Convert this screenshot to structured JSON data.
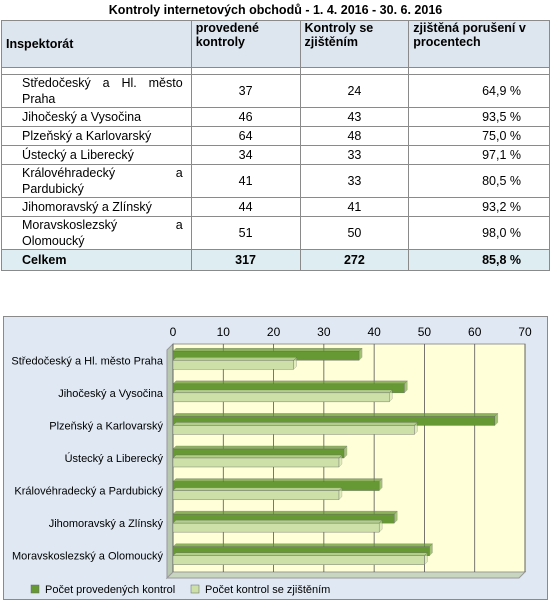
{
  "table": {
    "caption": "Kontroly internetových obchodů  - 1. 4. 2016 - 30. 6. 2016",
    "headers": [
      "Inspektorát",
      "provedené kontroly",
      "Kontroly se zjištěním",
      "zjištěná porušení v procentech"
    ],
    "rows": [
      {
        "name": "Středočeský a Hl. město Praha",
        "provedene": "37",
        "zjisteni": "24",
        "pct": "64,9 %"
      },
      {
        "name": "Jihočeský a Vysočina",
        "provedene": "46",
        "zjisteni": "43",
        "pct": "93,5 %"
      },
      {
        "name": "Plzeňský a Karlovarský",
        "provedene": "64",
        "zjisteni": "48",
        "pct": "75,0 %"
      },
      {
        "name": "Ústecký a Liberecký",
        "provedene": "34",
        "zjisteni": "33",
        "pct": "97,1 %"
      },
      {
        "name": "Královéhradecký a Pardubický",
        "provedene": "41",
        "zjisteni": "33",
        "pct": "80,5 %"
      },
      {
        "name": "Jihomoravský a Zlínský",
        "provedene": "44",
        "zjisteni": "41",
        "pct": "93,2 %"
      },
      {
        "name": "Moravskoslezský a Olomoucký",
        "provedene": "51",
        "zjisteni": "50",
        "pct": "98,0 %"
      }
    ],
    "total": {
      "name": "Celkem",
      "provedene": "317",
      "zjisteni": "272",
      "pct": "85,8 %"
    }
  },
  "chart_data": {
    "type": "bar",
    "orientation": "horizontal",
    "categories": [
      "Středočeský a Hl. město Praha",
      "Jihočeský a Vysočina",
      "Plzeňský a Karlovarský",
      "Ústecký a Liberecký",
      "Královéhradecký a Pardubický",
      "Jihomoravský a Zlínský",
      "Moravskoslezský a Olomoucký"
    ],
    "series": [
      {
        "name": "Počet provedených kontrol",
        "values": [
          37,
          46,
          64,
          34,
          41,
          44,
          51
        ],
        "color": "#669933"
      },
      {
        "name": "Počet kontrol se zjištěním",
        "values": [
          24,
          43,
          48,
          33,
          33,
          41,
          50
        ],
        "color": "#cce0a8"
      }
    ],
    "xlim": [
      0,
      70
    ],
    "xticks": [
      "0",
      "10",
      "20",
      "30",
      "40",
      "50",
      "60",
      "70"
    ],
    "axis_position": "top",
    "grid": true,
    "plot_background": "#ffffd8",
    "outer_background": "#dfe8f3",
    "legend_position": "bottom"
  }
}
